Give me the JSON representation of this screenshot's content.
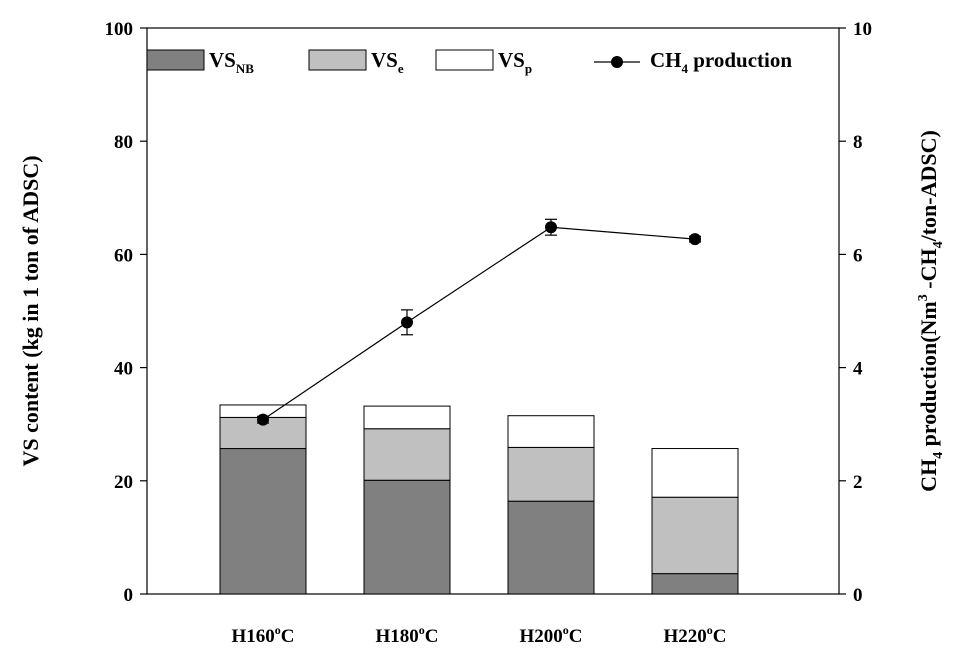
{
  "chart_data": {
    "type": "bar",
    "stacked": true,
    "categories": [
      {
        "base": "H160",
        "sup": "o",
        "tail": "C"
      },
      {
        "base": "H180",
        "sup": "o",
        "tail": "C"
      },
      {
        "base": "H200",
        "sup": "o",
        "tail": "C"
      },
      {
        "base": "H220",
        "sup": "o",
        "tail": "C"
      }
    ],
    "series": [
      {
        "name_base": "VS",
        "name_sub": "NB",
        "color": "#808080",
        "values": [
          25.7,
          20.1,
          16.4,
          3.6
        ]
      },
      {
        "name_base": "VS",
        "name_sub": "e",
        "color": "#c0c0c0",
        "values": [
          5.5,
          9.1,
          9.5,
          13.5
        ]
      },
      {
        "name_base": "VS",
        "name_sub": "p",
        "color": "#ffffff",
        "values": [
          2.2,
          4.0,
          5.6,
          8.6
        ]
      }
    ],
    "line_series": {
      "name_pre": "CH",
      "name_sub": "4",
      "name_post": " production",
      "axis": "right",
      "values": [
        3.08,
        4.8,
        6.48,
        6.27
      ],
      "errors": [
        0.06,
        0.22,
        0.14,
        0.05
      ],
      "color": "#000000"
    },
    "y_left": {
      "label": "VS content (kg in 1 ton of ADSC)",
      "lim": [
        0,
        100
      ],
      "ticks": [
        "0",
        "20",
        "40",
        "60",
        "80",
        "100"
      ]
    },
    "y_right": {
      "label_parts": [
        "CH",
        "4",
        " production(Nm",
        "3",
        " -CH",
        "4",
        "/ton-ADSC)"
      ],
      "lim": [
        0,
        10
      ],
      "ticks": [
        "0",
        "2",
        "4",
        "6",
        "8",
        "10"
      ]
    },
    "legend_position": "top",
    "grid": false
  }
}
